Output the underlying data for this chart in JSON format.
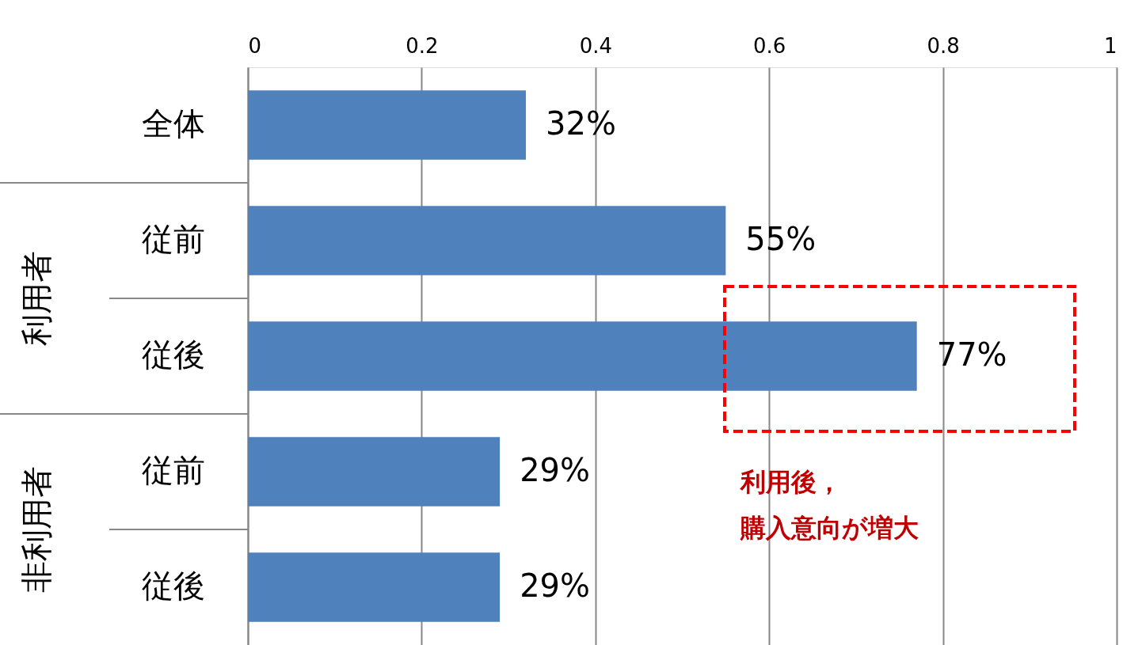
{
  "chart_data": {
    "type": "bar",
    "orientation": "horizontal",
    "categories": [
      "全体",
      "従前",
      "従後",
      "従前",
      "従後"
    ],
    "values": [
      0.32,
      0.55,
      0.77,
      0.29,
      0.29
    ],
    "value_labels": [
      "32%",
      "55%",
      "77%",
      "29%",
      "29%"
    ],
    "color": "#4f81bd",
    "xlim": [
      0,
      1
    ],
    "xticks": [
      0,
      0.2,
      0.4,
      0.6,
      0.8,
      1
    ],
    "grid": "x",
    "annotations": [
      "利用者",
      "非利用者",
      "利用後，",
      "購入意向が増大"
    ]
  }
}
